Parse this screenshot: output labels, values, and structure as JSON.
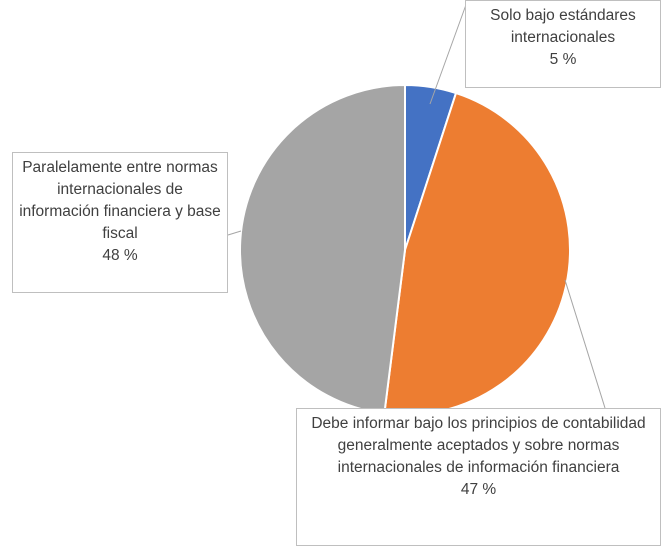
{
  "chart_data": {
    "type": "pie",
    "categories": [
      "Solo bajo estándares internacionales",
      "Debe informar bajo los principios de contabilidad generalmente aceptados y sobre normas internacionales de información financiera",
      "Paralelamente entre normas internacionales de información financiera y base fiscal"
    ],
    "values": [
      5,
      47,
      48
    ],
    "value_labels": [
      "5 %",
      "47 %",
      "48 %"
    ],
    "colors": [
      "#4472c4",
      "#ed7d31",
      "#a5a5a5"
    ]
  }
}
